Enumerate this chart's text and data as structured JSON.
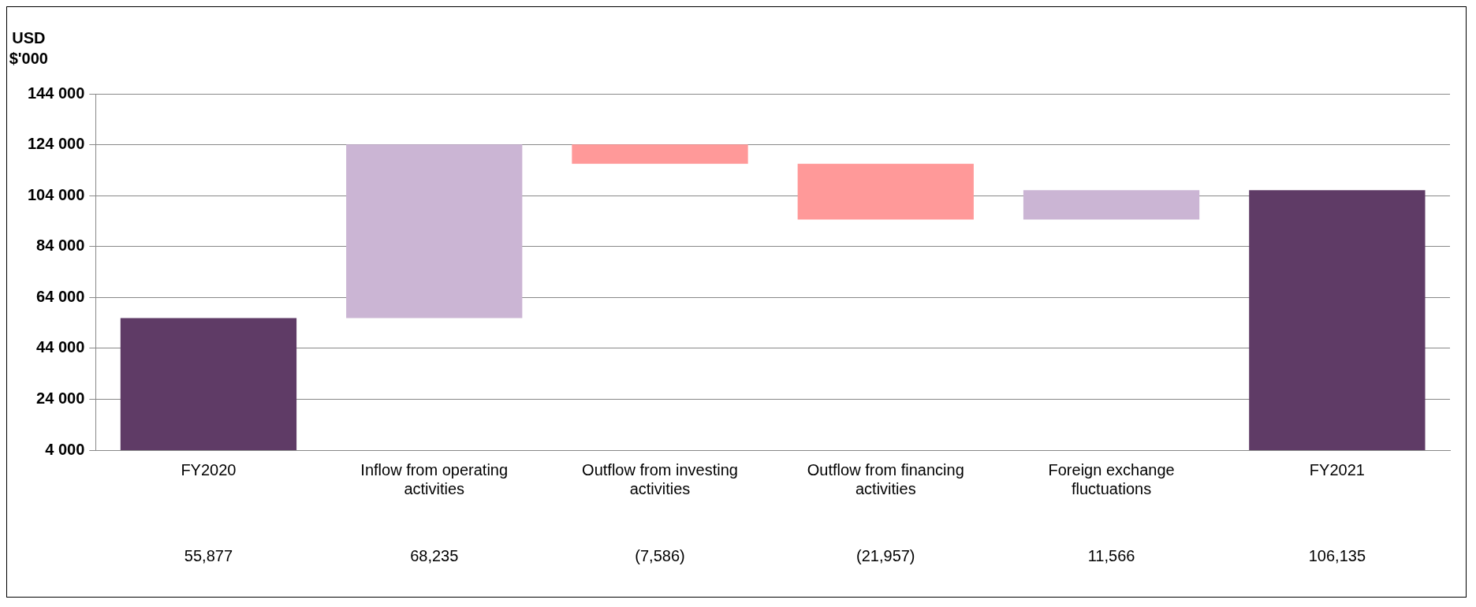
{
  "chart_data": {
    "type": "bar",
    "ylabel": "USD $'000",
    "categories": [
      "FY2020",
      "Inflow from operating activities",
      "Outflow from investing activities",
      "Outflow from financing activities",
      "Foreign exchange fluctuations",
      "FY2021"
    ],
    "values": [
      55877,
      68235,
      -7586,
      -21957,
      11566,
      106135
    ],
    "base": [
      null,
      55877,
      124112,
      116526,
      94569,
      null
    ],
    "colors": [
      "#5f3b66",
      "#cbb5d4",
      "#ff9999",
      "#ff9999",
      "#cbb5d4",
      "#5f3b66"
    ],
    "value_labels": [
      "55,877",
      "68,235",
      "(7,586)",
      "(21,957)",
      "11,566",
      "106,135"
    ],
    "ylim": [
      4000,
      144000
    ],
    "yticks": [
      {
        "value": 4000,
        "label": "4 000"
      },
      {
        "value": 24000,
        "label": "24 000"
      },
      {
        "value": 44000,
        "label": "44 000"
      },
      {
        "value": 64000,
        "label": "64 000"
      },
      {
        "value": 84000,
        "label": "84 000"
      },
      {
        "value": 104000,
        "label": "104 000"
      },
      {
        "value": 124000,
        "label": "124 000"
      },
      {
        "value": 144000,
        "label": "144 000"
      }
    ],
    "grid": "y",
    "legend": false
  }
}
